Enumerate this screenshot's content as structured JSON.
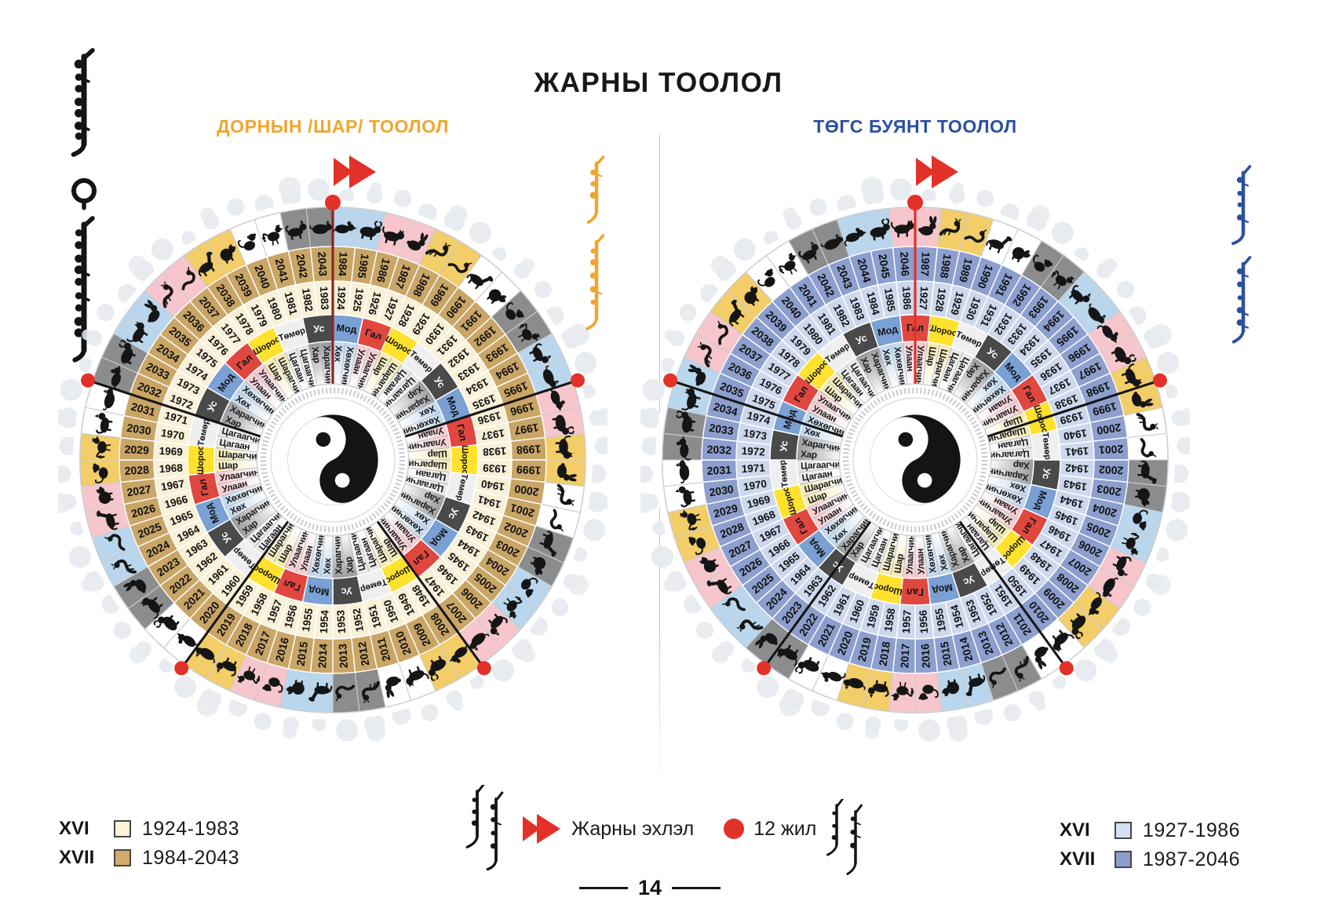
{
  "page": {
    "title": "ЖАРНЫ ТООЛОЛ",
    "number": "14"
  },
  "wheels": [
    {
      "id": "east",
      "subtitle": "ДОРНЫН /ШАР/ ТООЛОЛ",
      "subtitle_color": "#F0A52F",
      "start_line_color": "#8E2420",
      "outer_ring": {
        "cycle": "XVII",
        "range": "1984-2043",
        "fill": "#C9A566",
        "years": [
          1984,
          1985,
          1986,
          1987,
          1988,
          1989,
          1990,
          1991,
          1992,
          1993,
          1994,
          1995,
          1996,
          1997,
          1998,
          1999,
          2000,
          2001,
          2002,
          2003,
          2004,
          2005,
          2006,
          2007,
          2008,
          2009,
          2010,
          2011,
          2012,
          2013,
          2014,
          2015,
          2016,
          2017,
          2018,
          2019,
          2020,
          2021,
          2022,
          2023,
          2024,
          2025,
          2026,
          2027,
          2028,
          2029,
          2030,
          2031,
          2032,
          2033,
          2034,
          2035,
          2036,
          2037,
          2038,
          2039,
          2040,
          2041,
          2042,
          2043
        ]
      },
      "inner_ring": {
        "cycle": "XVI",
        "range": "1924-1983",
        "fill": "#F8F1D8",
        "years": [
          1924,
          1925,
          1926,
          1927,
          1928,
          1929,
          1930,
          1931,
          1932,
          1933,
          1934,
          1935,
          1936,
          1937,
          1938,
          1939,
          1940,
          1941,
          1942,
          1943,
          1944,
          1945,
          1946,
          1947,
          1948,
          1949,
          1950,
          1951,
          1952,
          1953,
          1954,
          1955,
          1956,
          1957,
          1958,
          1959,
          1960,
          1961,
          1962,
          1963,
          1964,
          1965,
          1966,
          1967,
          1968,
          1969,
          1970,
          1971,
          1972,
          1973,
          1974,
          1975,
          1976,
          1977,
          1978,
          1979,
          1980,
          1981,
          1982,
          1983
        ]
      }
    },
    {
      "id": "tugs",
      "subtitle": "ТӨГС БУЯНТ ТООЛОЛ",
      "subtitle_color": "#2B4FA0",
      "start_line_color": "#E23128",
      "outer_ring": {
        "cycle": "XVII",
        "range": "1987-2046",
        "fill": "#8C9FCE",
        "years": [
          1987,
          1988,
          1989,
          1990,
          1991,
          1992,
          1993,
          1994,
          1995,
          1996,
          1997,
          1998,
          1999,
          2000,
          2001,
          2002,
          2003,
          2004,
          2005,
          2006,
          2007,
          2008,
          2009,
          2010,
          2011,
          2012,
          2013,
          2014,
          2015,
          2016,
          2017,
          2018,
          2019,
          2020,
          2021,
          2022,
          2023,
          2024,
          2025,
          2026,
          2027,
          2028,
          2029,
          2030,
          2031,
          2032,
          2033,
          2034,
          2035,
          2036,
          2037,
          2038,
          2039,
          2040,
          2041,
          2042,
          2043,
          2044,
          2045,
          2046
        ]
      },
      "inner_ring": {
        "cycle": "XVI",
        "range": "1927-1986",
        "fill": "#CDD8ED",
        "years": [
          1927,
          1928,
          1929,
          1930,
          1931,
          1932,
          1933,
          1934,
          1935,
          1936,
          1937,
          1938,
          1939,
          1940,
          1941,
          1942,
          1943,
          1944,
          1945,
          1946,
          1947,
          1948,
          1949,
          1950,
          1951,
          1952,
          1953,
          1954,
          1955,
          1956,
          1957,
          1958,
          1959,
          1960,
          1961,
          1962,
          1963,
          1964,
          1965,
          1966,
          1967,
          1968,
          1969,
          1970,
          1971,
          1972,
          1973,
          1974,
          1975,
          1976,
          1977,
          1978,
          1979,
          1980,
          1981,
          1982,
          1983,
          1984,
          1985,
          1986
        ]
      }
    }
  ],
  "cycles": {
    "base_year": 1984,
    "elements": [
      "Мод",
      "Гал",
      "Шороо",
      "Төмөр",
      "Ус"
    ],
    "colors": [
      "Хөх",
      "Хөхөгчин",
      "Улаан",
      "Улаагчин",
      "Шар",
      "Шарагчин",
      "Цагаан",
      "Цагаагчин",
      "Хар",
      "Харагчин"
    ],
    "animals": [
      "rat",
      "ox",
      "tiger",
      "rabbit",
      "dragon",
      "snake",
      "horse",
      "sheep",
      "monkey",
      "rooster",
      "dog",
      "pig"
    ]
  },
  "palette": {
    "element_fills": {
      "Мод": "#7AA0D4",
      "Гал": "#E0473F",
      "Шороо": "#FFE12E",
      "Төмөр": "#EFEFEF",
      "Ус": "#4A4A4A"
    },
    "element_text_dark": "#141414",
    "element_text_light": "#FFFFFF",
    "animal_bg": {
      "Мод": "#B9D6EC",
      "Гал": "#F6C6CC",
      "Шороо": "#F2CD68",
      "Төмөр": "#FFFFFF",
      "Ус": "#8A8C8E"
    },
    "color_ring_tints": [
      "#BFD7EC",
      "#BFD7EC",
      "#F5C9CF",
      "#F5C9CF",
      "#F3E9B2",
      "#F3E9B2",
      "#E6E6E8",
      "#E6E6E8",
      "#999A9C",
      "#999A9C"
    ],
    "flag_red": "#E23128",
    "cloud": "#E8EBEF"
  },
  "legend": {
    "flag_label": "Жарны эхлэл",
    "dot_label": "12 жил",
    "flag_color": "#E23128",
    "left_rows": [
      {
        "cycle": "XVI",
        "range": "1924-1983",
        "swatch": "#FBF4DB"
      },
      {
        "cycle": "XVII",
        "range": "1984-2043",
        "swatch": "#D2AC6D"
      }
    ],
    "right_rows": [
      {
        "cycle": "XVI",
        "range": "1927-1986",
        "swatch": "#D6E0F2"
      },
      {
        "cycle": "XVII",
        "range": "1987-2046",
        "swatch": "#8C9FCE"
      }
    ]
  },
  "decor_scripts": [
    {
      "id": "top-left",
      "style": "traditional Mongolian script, vertical",
      "color": "#141414"
    },
    {
      "id": "left-wheel-side",
      "style": "traditional Mongolian script, vertical",
      "color": "#F0A52F"
    },
    {
      "id": "right-edge",
      "style": "traditional Mongolian script, vertical",
      "color": "#2B4FA0"
    },
    {
      "id": "legend-start",
      "style": "traditional Mongolian script, vertical",
      "color": "#141414"
    },
    {
      "id": "legend-12yr",
      "style": "traditional Mongolian script, vertical",
      "color": "#141414"
    }
  ]
}
